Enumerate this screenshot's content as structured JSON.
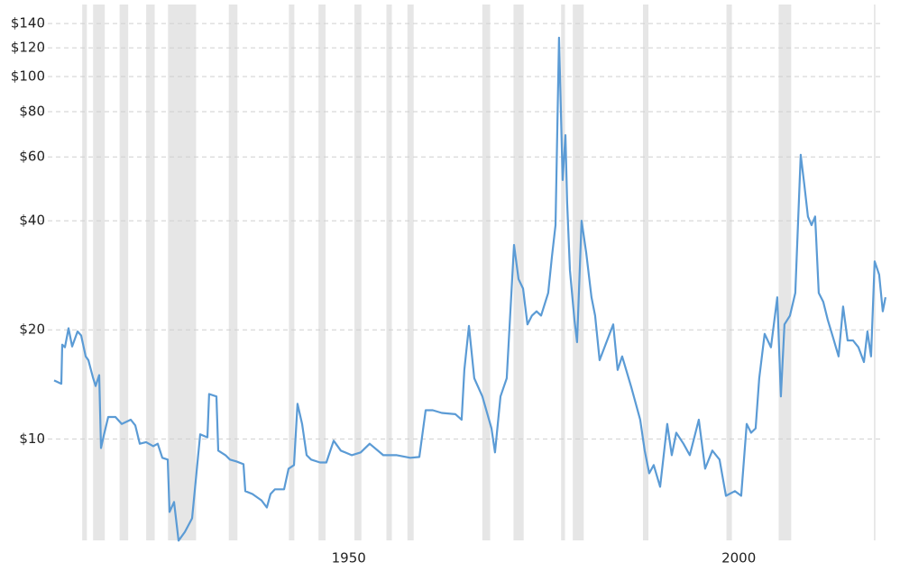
{
  "chart_data": {
    "type": "line",
    "log_y": true,
    "grid": true,
    "ylim": [
      5.25,
      158
    ],
    "xlim": [
      1915,
      2021.6
    ],
    "yticks": [
      {
        "value": 10,
        "label": "$10"
      },
      {
        "value": 20,
        "label": "$20"
      },
      {
        "value": 40,
        "label": "$40"
      },
      {
        "value": 60,
        "label": "$60"
      },
      {
        "value": 80,
        "label": "$80"
      },
      {
        "value": 100,
        "label": "$100"
      },
      {
        "value": 120,
        "label": "$120"
      },
      {
        "value": 140,
        "label": "$140"
      }
    ],
    "xticks": [
      1950,
      2000
    ],
    "recession_color": "#e6e6e6",
    "recessions": [
      [
        1918.6,
        1919.2
      ],
      [
        1920.0,
        1921.5
      ],
      [
        1923.4,
        1924.5
      ],
      [
        1926.8,
        1927.9
      ],
      [
        1929.6,
        1933.2
      ],
      [
        1937.4,
        1938.5
      ],
      [
        1945.1,
        1945.8
      ],
      [
        1948.9,
        1949.8
      ],
      [
        1953.5,
        1954.4
      ],
      [
        1957.6,
        1958.3
      ],
      [
        1960.3,
        1961.1
      ],
      [
        1969.9,
        1970.9
      ],
      [
        1973.9,
        1975.2
      ],
      [
        1980.0,
        1980.5
      ],
      [
        1981.5,
        1982.9
      ],
      [
        1990.5,
        1991.2
      ],
      [
        2001.2,
        2001.9
      ],
      [
        2007.9,
        2009.5
      ],
      [
        2020.1,
        2020.3
      ]
    ],
    "x": [
      1915.0,
      1915.92,
      1916.04,
      1916.39,
      1916.85,
      1917.31,
      1918.01,
      1918.47,
      1919.05,
      1919.39,
      1919.97,
      1920.32,
      1920.78,
      1921.01,
      1921.36,
      1921.94,
      1922.86,
      1923.67,
      1924.83,
      1925.4,
      1925.98,
      1926.79,
      1927.72,
      1928.29,
      1928.87,
      1929.57,
      1929.8,
      1930.38,
      1930.95,
      1931.76,
      1932.69,
      1933.73,
      1934.65,
      1934.88,
      1935.81,
      1936.04,
      1936.97,
      1937.54,
      1938.35,
      1939.28,
      1939.51,
      1940.43,
      1941.59,
      1942.28,
      1942.75,
      1943.32,
      1944.48,
      1945.06,
      1945.75,
      1946.21,
      1946.79,
      1947.37,
      1947.95,
      1949.1,
      1949.91,
      1950.84,
      1951.76,
      1953.15,
      1954.31,
      1955.46,
      1957.2,
      1958.93,
      1960.66,
      1961.82,
      1962.63,
      1963.55,
      1964.71,
      1966.45,
      1967.25,
      1967.6,
      1968.18,
      1968.87,
      1969.91,
      1971.07,
      1971.53,
      1972.23,
      1973.03,
      1973.96,
      1974.54,
      1975.12,
      1975.69,
      1976.27,
      1976.85,
      1977.43,
      1978.35,
      1978.82,
      1979.28,
      1979.74,
      1980.2,
      1980.55,
      1980.78,
      1981.13,
      1981.71,
      1982.05,
      1982.63,
      1983.21,
      1983.9,
      1984.36,
      1984.94,
      1986.68,
      1987.25,
      1987.83,
      1988.99,
      1990.14,
      1990.72,
      1991.3,
      1991.88,
      1992.69,
      1993.61,
      1994.19,
      1994.77,
      1995.69,
      1996.5,
      1997.66,
      1998.47,
      1999.39,
      2000.32,
      2001.13,
      2002.28,
      2003.09,
      2003.79,
      2004.36,
      2004.94,
      2005.4,
      2006.1,
      2006.91,
      2007.72,
      2008.18,
      2008.64,
      2009.34,
      2010.03,
      2010.72,
      2011.18,
      2011.65,
      2012.11,
      2012.57,
      2013.03,
      2013.61,
      2014.19,
      2014.88,
      2015.58,
      2016.16,
      2016.73,
      2017.43,
      2018.12,
      2018.82,
      2019.28,
      2019.74,
      2020.2,
      2020.78,
      2021.24,
      2021.59
    ],
    "series": [
      {
        "color": "#5b9bd5",
        "values": [
          14.5,
          14.2,
          18.2,
          17.9,
          20.2,
          18.0,
          19.8,
          19.3,
          16.9,
          16.5,
          14.8,
          14.0,
          15.0,
          9.44,
          10.2,
          11.5,
          11.5,
          11.0,
          11.3,
          10.9,
          9.7,
          9.8,
          9.55,
          9.7,
          8.87,
          8.77,
          6.29,
          6.7,
          5.24,
          5.54,
          6.04,
          10.3,
          10.1,
          13.3,
          13.1,
          9.29,
          9.02,
          8.77,
          8.67,
          8.52,
          7.18,
          7.05,
          6.77,
          6.47,
          7.05,
          7.26,
          7.26,
          8.28,
          8.47,
          12.5,
          11.0,
          9.02,
          8.77,
          8.61,
          8.61,
          9.89,
          9.29,
          9.02,
          9.18,
          9.7,
          9.02,
          9.02,
          8.87,
          8.92,
          12.0,
          12.0,
          11.8,
          11.7,
          11.3,
          15.5,
          20.5,
          14.7,
          13.1,
          10.7,
          9.18,
          13.1,
          14.7,
          34.3,
          27.6,
          26.0,
          20.7,
          21.9,
          22.5,
          21.9,
          25.3,
          31.8,
          38.9,
          128,
          51.8,
          68.9,
          44.9,
          29.2,
          21.3,
          18.5,
          40.0,
          32.7,
          24.6,
          21.9,
          16.5,
          20.7,
          15.5,
          16.9,
          13.9,
          11.3,
          9.29,
          8.04,
          8.47,
          7.38,
          11.0,
          9.02,
          10.4,
          9.7,
          9.02,
          11.3,
          8.28,
          9.29,
          8.77,
          6.97,
          7.18,
          6.97,
          11.0,
          10.4,
          10.7,
          14.7,
          19.5,
          17.9,
          24.6,
          13.1,
          20.7,
          21.9,
          25.3,
          60.8,
          50.3,
          41.1,
          38.9,
          41.1,
          25.3,
          23.9,
          21.3,
          19.0,
          16.9,
          23.2,
          18.7,
          18.7,
          17.9,
          16.3,
          19.8,
          16.9,
          30.9,
          28.4,
          22.5,
          24.6
        ]
      }
    ]
  }
}
